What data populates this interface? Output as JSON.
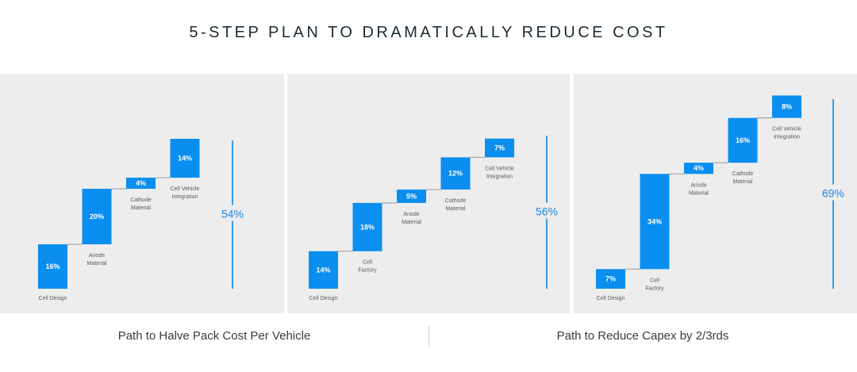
{
  "title": "5-STEP PLAN TO DRAMATICALLY REDUCE COST",
  "captions": {
    "left": "Path to Halve Pack Cost Per Vehicle",
    "right": "Path to Reduce Capex by 2/3rds"
  },
  "colors": {
    "bar": "#0a8ef0",
    "connector": "#9a9a9a",
    "total_line": "#3a9ae8"
  },
  "chart_data": [
    {
      "type": "bar",
      "categories": [
        "Cell Design",
        "Anode Material",
        "Cathode Material",
        "Cell Vehicle Integration"
      ],
      "values": [
        16,
        20,
        4,
        14
      ],
      "value_labels": [
        "16%",
        "20%",
        "4%",
        "14%"
      ],
      "total_label": "54%"
    },
    {
      "type": "bar",
      "categories": [
        "Cell Design",
        "Cell Factory",
        "Anode Material",
        "Cathode Material",
        "Cell Vehicle Integration"
      ],
      "values": [
        14,
        18,
        5,
        12,
        7
      ],
      "value_labels": [
        "14%",
        "18%",
        "5%",
        "12%",
        "7%"
      ],
      "total_label": "56%"
    },
    {
      "type": "bar",
      "categories": [
        "Cell Design",
        "Cell Factory",
        "Anode Material",
        "Cathode Material",
        "Cell Vehicle Integration"
      ],
      "values": [
        7,
        34,
        4,
        16,
        8
      ],
      "value_labels": [
        "7%",
        "34%",
        "4%",
        "16%",
        "8%"
      ],
      "total_label": "69%"
    }
  ]
}
